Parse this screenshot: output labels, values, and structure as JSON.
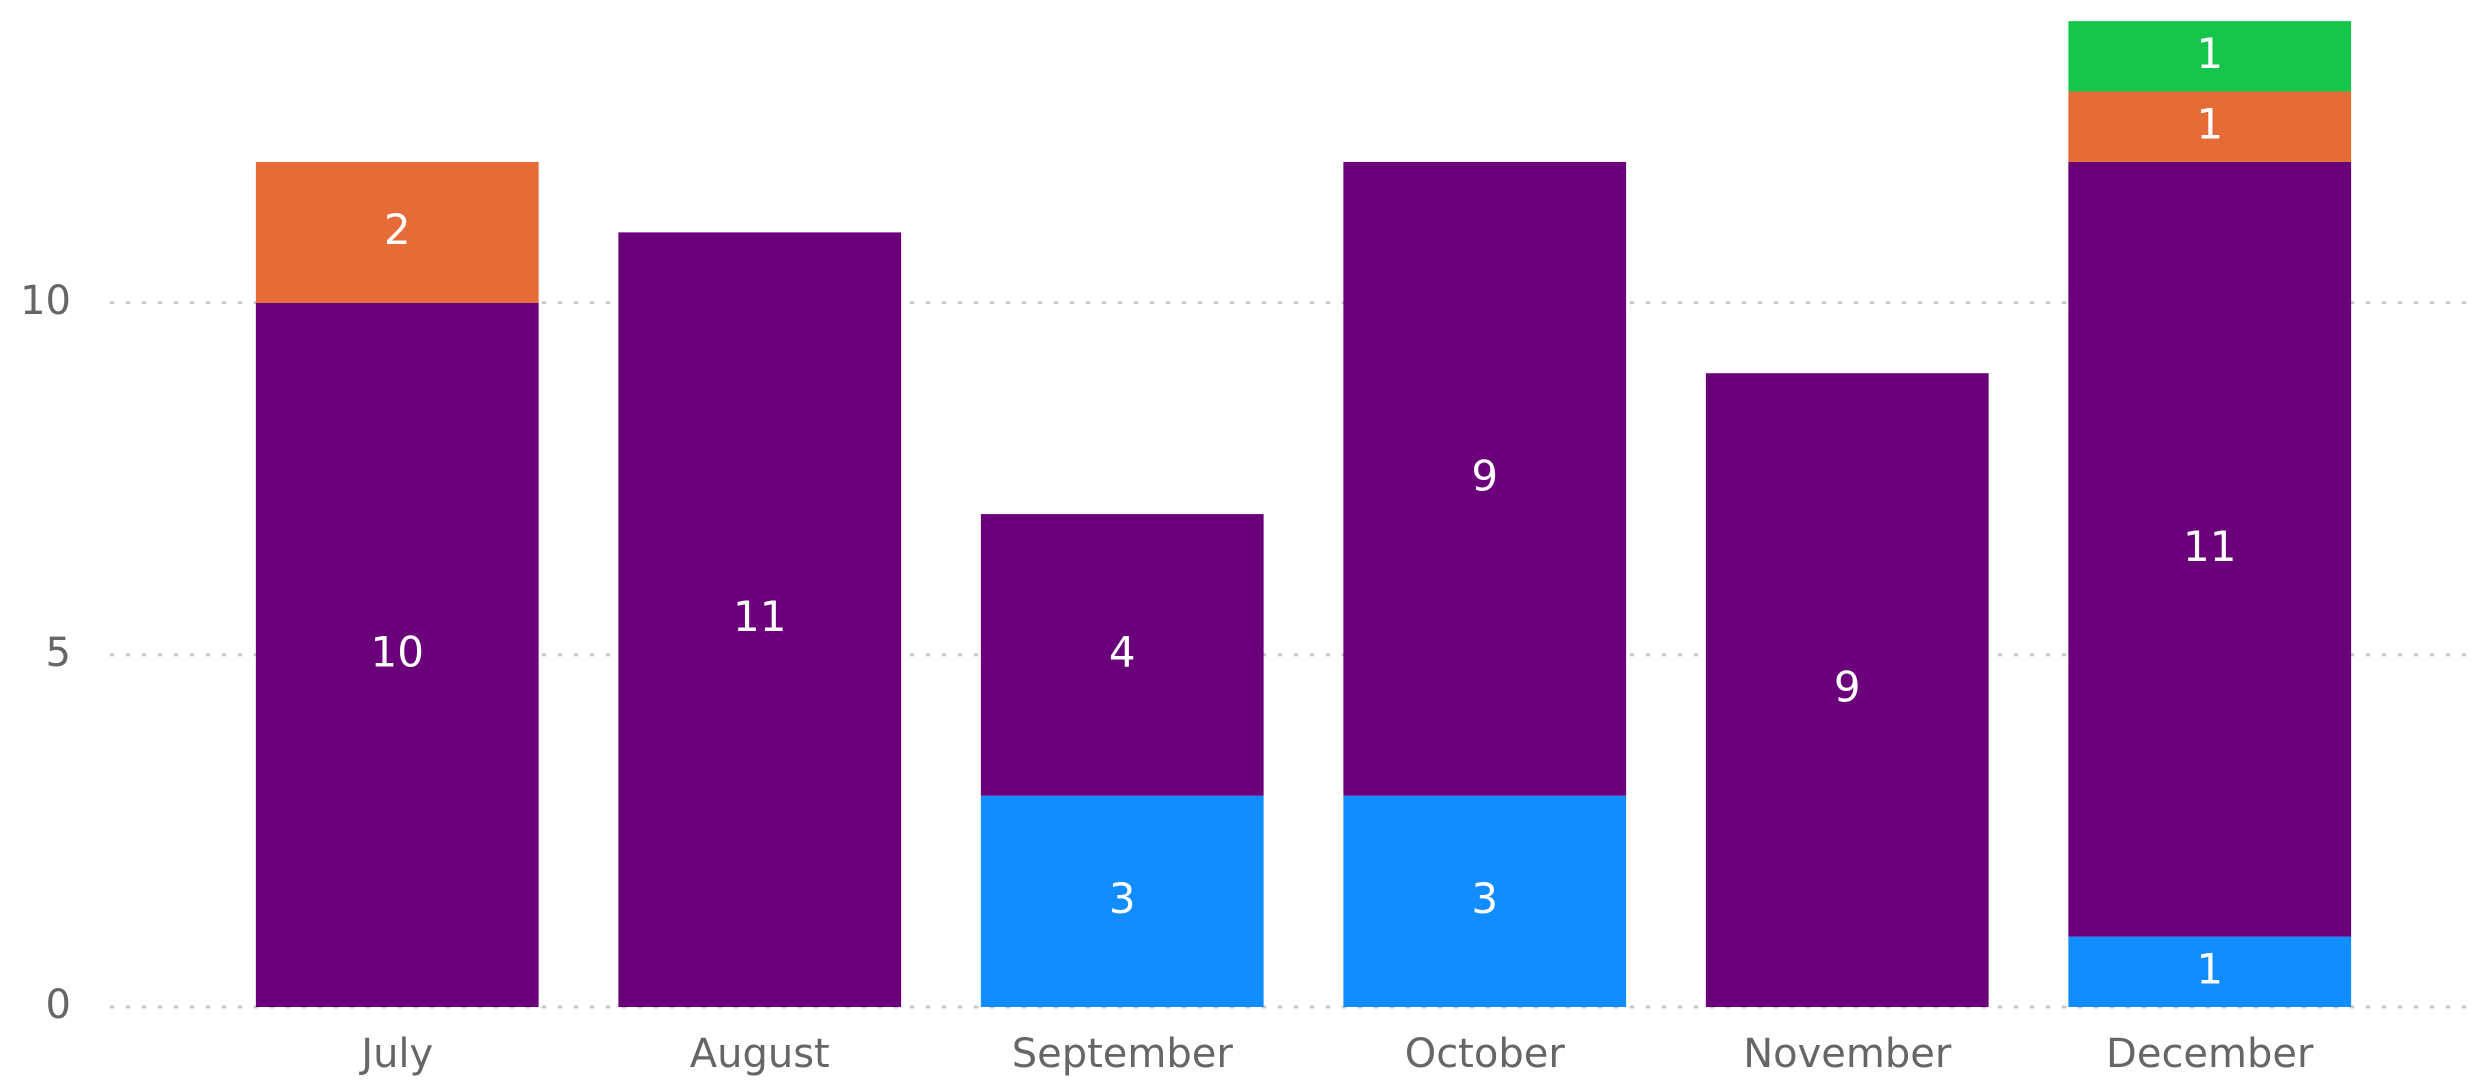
{
  "chart_data": {
    "type": "stacked_bar",
    "categories": [
      "July",
      "August",
      "September",
      "October",
      "November",
      "December"
    ],
    "series": [
      {
        "color": "#118dff",
        "values": [
          null,
          null,
          3,
          3,
          null,
          1
        ]
      },
      {
        "color": "#6b007b",
        "values": [
          10,
          11,
          4,
          9,
          9,
          11
        ]
      },
      {
        "color": "#e66c37",
        "values": [
          2,
          null,
          null,
          null,
          null,
          1
        ]
      },
      {
        "color": "#15c64b",
        "values": [
          null,
          null,
          null,
          null,
          null,
          1
        ]
      }
    ],
    "ylim": [
      0,
      14.3
    ],
    "yticks": [
      0,
      5,
      10
    ],
    "grid": true
  }
}
